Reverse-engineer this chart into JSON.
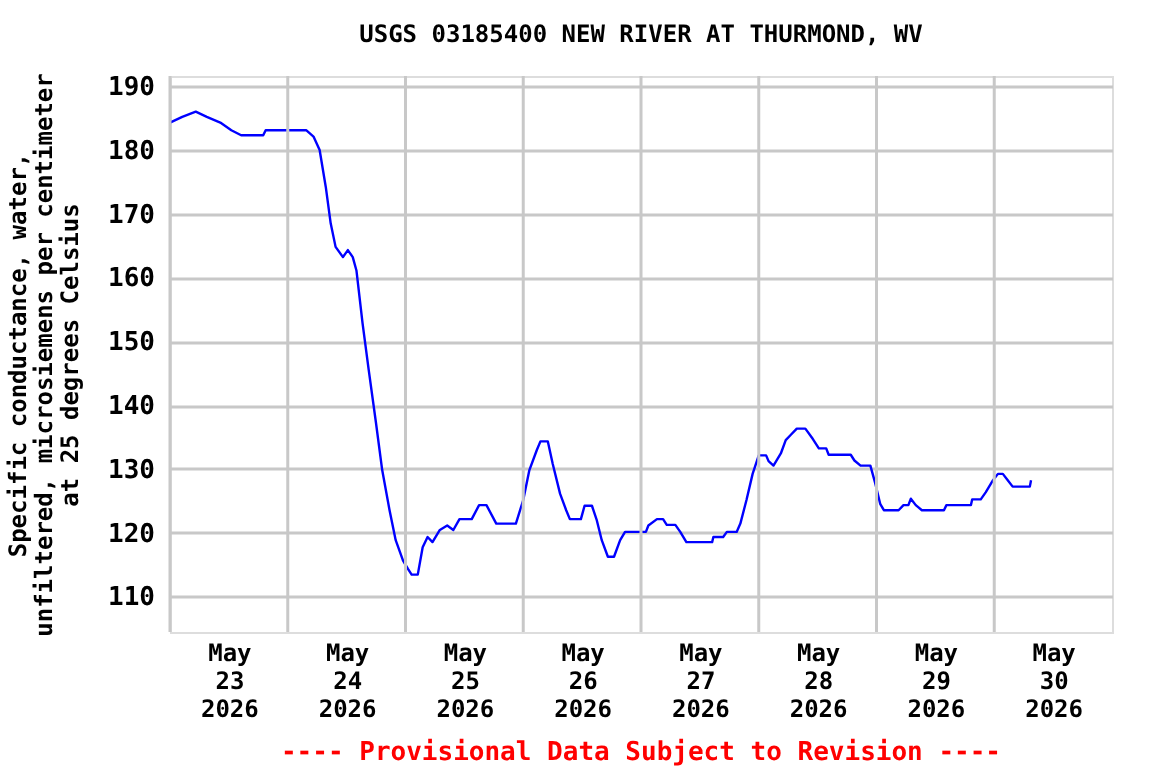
{
  "chart_data": {
    "type": "line",
    "title": "USGS 03185400 NEW RIVER AT THURMOND, WV",
    "ylabel": "Specific conductance, water, unfiltered, microsiemens per centimeter at 25 degrees Celsius",
    "annotations": [
      "---- Provisional Data Subject to Revision ----"
    ],
    "xlim": [
      "2026-05-23T00:00",
      "2026-05-31T00:00"
    ],
    "xticks": [
      {
        "value": "2026-05-23T00:00",
        "label": null
      },
      {
        "value": "2026-05-23T12:00",
        "label": "May 23 2026"
      },
      {
        "value": "2026-05-24T00:00",
        "label": null
      },
      {
        "value": "2026-05-24T12:00",
        "label": "May 24 2026"
      },
      {
        "value": "2026-05-25T00:00",
        "label": null
      },
      {
        "value": "2026-05-25T12:00",
        "label": "May 25 2026"
      },
      {
        "value": "2026-05-26T00:00",
        "label": null
      },
      {
        "value": "2026-05-26T12:00",
        "label": "May 26 2026"
      },
      {
        "value": "2026-05-27T00:00",
        "label": null
      },
      {
        "value": "2026-05-27T12:00",
        "label": "May 27 2026"
      },
      {
        "value": "2026-05-28T00:00",
        "label": null
      },
      {
        "value": "2026-05-28T12:00",
        "label": "May 28 2026"
      },
      {
        "value": "2026-05-29T00:00",
        "label": null
      },
      {
        "value": "2026-05-29T12:00",
        "label": "May 29 2026"
      },
      {
        "value": "2026-05-30T00:00",
        "label": null
      },
      {
        "value": "2026-05-30T12:00",
        "label": "May 30 2026"
      }
    ],
    "ylim": [
      104.4,
      191.6
    ],
    "yticks": [
      110,
      120,
      130,
      140,
      150,
      160,
      170,
      180,
      190
    ],
    "grid": true,
    "marker": "none",
    "line_style": "solid",
    "x": [
      "2026-05-23T00:00",
      "2026-05-23T02:30",
      "2026-05-23T05:15",
      "2026-05-23T07:30",
      "2026-05-23T10:15",
      "2026-05-23T12:30",
      "2026-05-23T14:30",
      "2026-05-23T19:00",
      "2026-05-23T19:30",
      "2026-05-24T03:45",
      "2026-05-24T05:15",
      "2026-05-24T06:30",
      "2026-05-24T07:45",
      "2026-05-24T08:45",
      "2026-05-24T09:45",
      "2026-05-24T11:15",
      "2026-05-24T12:15",
      "2026-05-24T13:15",
      "2026-05-24T14:00",
      "2026-05-24T15:15",
      "2026-05-24T16:30",
      "2026-05-24T18:00",
      "2026-05-24T19:15",
      "2026-05-24T20:45",
      "2026-05-24T22:00",
      "2026-05-24T23:30",
      "2026-05-25T00:30",
      "2026-05-25T01:15",
      "2026-05-25T02:30",
      "2026-05-25T03:30",
      "2026-05-25T04:30",
      "2026-05-25T05:30",
      "2026-05-25T07:00",
      "2026-05-25T08:30",
      "2026-05-25T09:45",
      "2026-05-25T11:00",
      "2026-05-25T13:30",
      "2026-05-25T15:00",
      "2026-05-25T16:30",
      "2026-05-25T18:30",
      "2026-05-25T22:30",
      "2026-05-26T00:00",
      "2026-05-26T01:15",
      "2026-05-26T02:45",
      "2026-05-26T03:30",
      "2026-05-26T05:00",
      "2026-05-26T06:00",
      "2026-05-26T07:30",
      "2026-05-26T08:45",
      "2026-05-26T09:30",
      "2026-05-26T11:45",
      "2026-05-26T12:30",
      "2026-05-26T14:00",
      "2026-05-26T15:00",
      "2026-05-26T16:00",
      "2026-05-26T17:15",
      "2026-05-26T18:30",
      "2026-05-26T19:45",
      "2026-05-26T20:45",
      "2026-05-27T01:00",
      "2026-05-27T01:30",
      "2026-05-27T03:15",
      "2026-05-27T04:30",
      "2026-05-27T05:15",
      "2026-05-27T07:00",
      "2026-05-27T08:00",
      "2026-05-27T09:15",
      "2026-05-27T14:30",
      "2026-05-27T14:45",
      "2026-05-27T16:45",
      "2026-05-27T17:30",
      "2026-05-27T19:30",
      "2026-05-27T20:15",
      "2026-05-27T21:30",
      "2026-05-27T22:45",
      "2026-05-28T00:00",
      "2026-05-28T01:30",
      "2026-05-28T02:00",
      "2026-05-28T03:00",
      "2026-05-28T04:30",
      "2026-05-28T05:30",
      "2026-05-28T06:30",
      "2026-05-28T07:45",
      "2026-05-28T09:30",
      "2026-05-28T11:00",
      "2026-05-28T12:15",
      "2026-05-28T13:45",
      "2026-05-28T14:15",
      "2026-05-28T18:45",
      "2026-05-28T19:30",
      "2026-05-28T20:45",
      "2026-05-28T22:45",
      "2026-05-28T23:45",
      "2026-05-29T00:45",
      "2026-05-29T01:30",
      "2026-05-29T04:30",
      "2026-05-29T05:30",
      "2026-05-29T06:30",
      "2026-05-29T07:00",
      "2026-05-29T08:00",
      "2026-05-29T09:15",
      "2026-05-29T13:45",
      "2026-05-29T14:15",
      "2026-05-29T19:15",
      "2026-05-29T19:30",
      "2026-05-29T21:15",
      "2026-05-29T22:15",
      "2026-05-29T23:45",
      "2026-05-30T00:45",
      "2026-05-30T01:45",
      "2026-05-30T02:45",
      "2026-05-30T03:45",
      "2026-05-30T07:15",
      "2026-05-30T07:30"
    ],
    "series": [
      {
        "color": "#0000ff",
        "values": [
          184.3,
          185.2,
          186.0,
          185.2,
          184.3,
          183.1,
          182.3,
          182.3,
          183.1,
          183.1,
          182.1,
          180.0,
          174.2,
          168.5,
          164.8,
          163.2,
          164.3,
          163.2,
          161.1,
          152.8,
          145.5,
          137.1,
          129.8,
          123.5,
          118.8,
          115.6,
          114.3,
          113.4,
          113.4,
          117.7,
          119.3,
          118.5,
          120.4,
          121.1,
          120.4,
          122.1,
          122.1,
          124.3,
          124.3,
          121.4,
          121.4,
          125.1,
          129.8,
          132.9,
          134.3,
          134.3,
          130.8,
          126.1,
          123.5,
          122.1,
          122.1,
          124.2,
          124.2,
          121.9,
          118.8,
          116.2,
          116.2,
          118.8,
          120.1,
          120.1,
          121.1,
          122.1,
          122.1,
          121.2,
          121.2,
          120.1,
          118.5,
          118.5,
          119.3,
          119.3,
          120.1,
          120.1,
          121.4,
          125.1,
          129.2,
          132.1,
          132.1,
          131.2,
          130.5,
          132.4,
          134.5,
          135.3,
          136.3,
          136.3,
          134.7,
          133.2,
          133.2,
          132.2,
          132.2,
          131.3,
          130.5,
          130.5,
          127.7,
          124.5,
          123.5,
          123.5,
          124.3,
          124.3,
          125.3,
          124.3,
          123.5,
          123.5,
          124.3,
          124.3,
          125.2,
          125.2,
          126.3,
          128.2,
          129.2,
          129.2,
          128.2,
          127.2,
          127.2,
          128.2
        ]
      }
    ]
  }
}
